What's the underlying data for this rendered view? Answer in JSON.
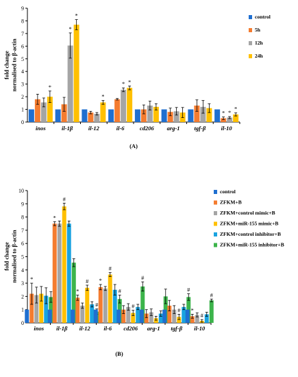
{
  "chart_data": [
    {
      "type": "bar",
      "panel_label": "(A)",
      "ylabel_lines": [
        "fold change",
        "normalised to β-actin"
      ],
      "ylim": [
        0,
        9
      ],
      "yticks": [
        0,
        1,
        2,
        3,
        4,
        5,
        6,
        7,
        8,
        9
      ],
      "categories": [
        "inos",
        "il-1β",
        "il-12",
        "il-6",
        "cd206",
        "arg-1",
        "tgf-β",
        "il-10"
      ],
      "legend_position": "right",
      "series": [
        {
          "name": "control",
          "color": "#1f6fd0",
          "values": [
            1,
            1,
            1,
            1,
            1,
            1,
            1,
            1
          ],
          "errors": [
            0,
            0,
            0,
            0,
            0,
            0,
            0,
            0
          ],
          "marks": [
            "",
            "",
            "",
            "",
            "",
            "",
            "",
            ""
          ]
        },
        {
          "name": "5h",
          "color": "#f47c30",
          "values": [
            1.8,
            1.4,
            0.75,
            1.8,
            1.0,
            0.8,
            1.3,
            0.3
          ],
          "errors": [
            0.4,
            0.55,
            0.1,
            0.06,
            0.35,
            0.3,
            0.45,
            0.1
          ],
          "marks": [
            "",
            "",
            "",
            "",
            "",
            "",
            "",
            "*"
          ]
        },
        {
          "name": "12h",
          "color": "#a5a5a5",
          "values": [
            1.55,
            6.05,
            0.65,
            2.55,
            1.3,
            0.85,
            1.2,
            0.35
          ],
          "errors": [
            0.35,
            1.0,
            0.1,
            0.15,
            0.35,
            0.3,
            0.5,
            0.08
          ],
          "marks": [
            "",
            "*",
            "",
            "*",
            "",
            "",
            "",
            "*"
          ]
        },
        {
          "name": "24h",
          "color": "#ffc000",
          "values": [
            2.0,
            7.7,
            1.55,
            2.7,
            1.2,
            0.75,
            1.1,
            0.6
          ],
          "errors": [
            0.45,
            0.4,
            0.15,
            0.15,
            0.25,
            0.4,
            0.35,
            0.12
          ],
          "marks": [
            "*",
            "*",
            "*",
            "*",
            "",
            "",
            "",
            "*"
          ]
        }
      ]
    },
    {
      "type": "bar",
      "panel_label": "(B)",
      "ylabel_lines": [
        "fold change",
        "normalised to β-actin"
      ],
      "ylim": [
        0,
        10
      ],
      "yticks": [
        0,
        1,
        2,
        3,
        4,
        5,
        6,
        7,
        8,
        9,
        10
      ],
      "categories": [
        "inos",
        "il-1β",
        "il-12",
        "il-6",
        "cd206",
        "arg-1",
        "tgf-β",
        "il-10"
      ],
      "legend_position": "right",
      "series": [
        {
          "name": "control",
          "color": "#1f6fd0",
          "values": [
            1,
            1,
            1,
            1,
            1,
            1,
            1,
            1
          ],
          "errors": [
            0,
            0,
            0,
            0,
            0,
            0,
            0,
            0
          ],
          "marks": [
            "",
            "",
            "",
            "",
            "",
            "",
            "",
            ""
          ]
        },
        {
          "name": "ZFKM+B",
          "color": "#f47c30",
          "values": [
            2.2,
            7.5,
            1.9,
            2.7,
            1.0,
            0.7,
            1.3,
            0.5
          ],
          "errors": [
            0.8,
            0.15,
            0.2,
            0.2,
            0.3,
            0.3,
            0.4,
            0.15
          ],
          "marks": [
            "*",
            "*",
            "*",
            "*",
            "",
            "",
            "",
            "*"
          ]
        },
        {
          "name": "ZFKM+control mimic+B",
          "color": "#a5a5a5",
          "values": [
            2.1,
            7.5,
            1.3,
            2.6,
            1.2,
            0.8,
            1.0,
            0.6
          ],
          "errors": [
            0.6,
            0.2,
            0.2,
            0.15,
            0.25,
            0.25,
            0.3,
            0.15
          ],
          "marks": [
            "",
            "",
            "",
            "",
            "",
            "",
            "",
            ""
          ]
        },
        {
          "name": "ZFKM+miR-155 mimic+B",
          "color": "#ffc000",
          "values": [
            2.2,
            8.8,
            2.65,
            3.65,
            0.75,
            0.35,
            0.45,
            0.15
          ],
          "errors": [
            0.55,
            0.25,
            0.2,
            0.15,
            0.2,
            0.15,
            0.2,
            0.1
          ],
          "marks": [
            "",
            "#",
            "#",
            "#",
            "#",
            "",
            "#",
            "#"
          ]
        },
        {
          "name": "ZFKM+control inhibitor+B",
          "color": "#1aa3e0",
          "values": [
            2.05,
            7.5,
            1.4,
            2.5,
            1.2,
            0.7,
            1.2,
            0.65
          ],
          "errors": [
            0.6,
            0.2,
            0.2,
            0.4,
            0.2,
            0.2,
            0.2,
            0.15
          ],
          "marks": [
            "",
            "",
            "",
            "",
            "",
            "",
            "",
            ""
          ]
        },
        {
          "name": "ZFKM+miR-155 inhibitor+B",
          "color": "#3cb44b",
          "values": [
            1.95,
            4.55,
            0.85,
            1.8,
            2.75,
            2.0,
            1.95,
            1.7
          ],
          "errors": [
            0.4,
            0.3,
            0.2,
            0.3,
            0.35,
            0.55,
            0.25,
            0.1
          ],
          "marks": [
            "",
            "",
            "#",
            "#",
            "#",
            "",
            "#",
            "#"
          ]
        }
      ]
    }
  ]
}
